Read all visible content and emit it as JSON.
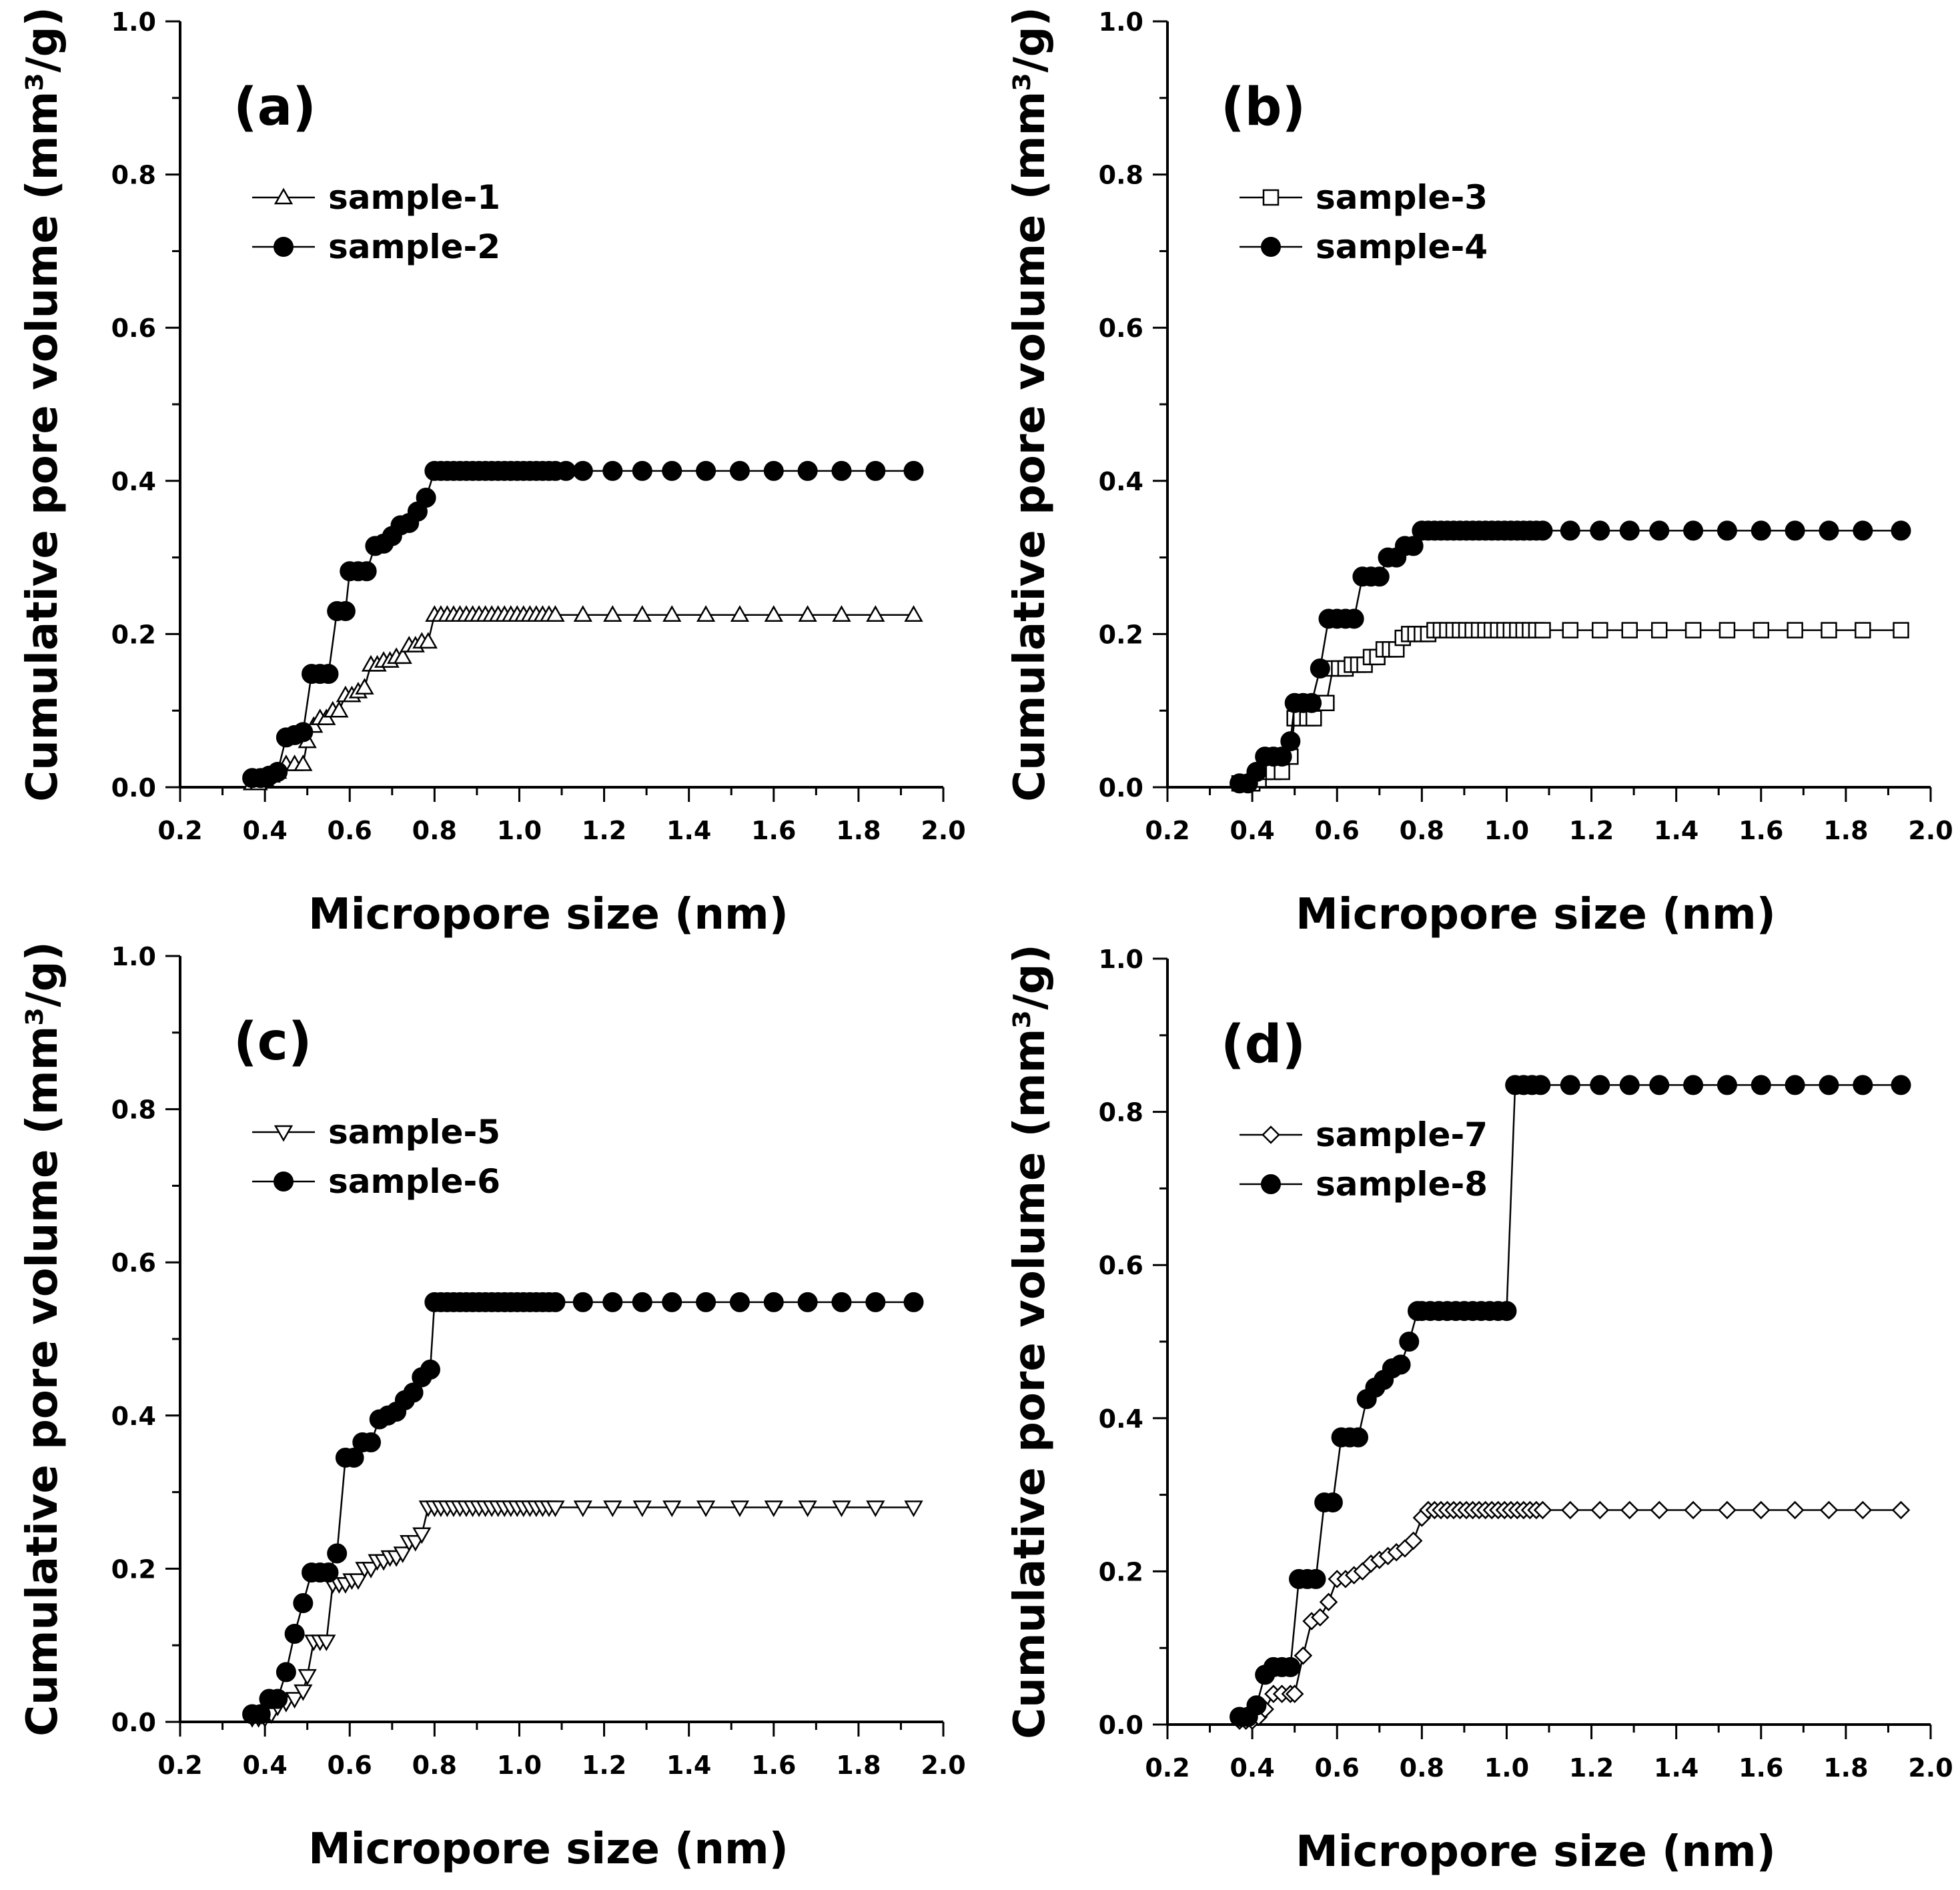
{
  "figure": {
    "shared_xlabel": "Micropore size (nm)",
    "shared_ylabel": "Cumulative pore volume (mm³/g)",
    "xticks": [
      "0.2",
      "0.4",
      "0.6",
      "0.8",
      "1.0",
      "1.2",
      "1.4",
      "1.6",
      "1.8",
      "2.0"
    ],
    "yticks": [
      "0.0",
      "0.2",
      "0.4",
      "0.6",
      "0.8",
      "1.0"
    ]
  },
  "colors": {
    "ink": "#000000",
    "background": "#ffffff"
  },
  "chart_data": [
    {
      "type": "line",
      "panel_label": "(a)",
      "xlabel": "Micropore size (nm)",
      "ylabel": "Cumulative pore volume (mm³/g)",
      "xlim": [
        0.2,
        2.0
      ],
      "ylim": [
        0.0,
        1.0
      ],
      "legend_position": "top-left",
      "series": [
        {
          "name": "sample-1",
          "marker": "triangle-up",
          "fill": "open",
          "x": [
            0.37,
            0.385,
            0.4,
            0.415,
            0.43,
            0.45,
            0.47,
            0.49,
            0.5,
            0.515,
            0.53,
            0.545,
            0.56,
            0.575,
            0.59,
            0.605,
            0.62,
            0.635,
            0.65,
            0.665,
            0.68,
            0.695,
            0.71,
            0.725,
            0.74,
            0.755,
            0.77,
            0.785,
            0.8,
            0.815,
            0.83,
            0.845,
            0.86,
            0.875,
            0.89,
            0.905,
            0.92,
            0.935,
            0.95,
            0.965,
            0.98,
            0.995,
            1.01,
            1.025,
            1.04,
            1.055,
            1.07,
            1.085,
            1.15,
            1.22,
            1.29,
            1.36,
            1.44,
            1.52,
            1.6,
            1.68,
            1.76,
            1.84,
            1.93
          ],
          "y": [
            0.005,
            0.005,
            0.01,
            0.015,
            0.02,
            0.03,
            0.03,
            0.03,
            0.06,
            0.08,
            0.09,
            0.09,
            0.1,
            0.1,
            0.12,
            0.12,
            0.125,
            0.13,
            0.16,
            0.16,
            0.165,
            0.165,
            0.17,
            0.17,
            0.185,
            0.185,
            0.19,
            0.19,
            0.225,
            0.225,
            0.225,
            0.225,
            0.225,
            0.225,
            0.225,
            0.225,
            0.225,
            0.225,
            0.225,
            0.225,
            0.225,
            0.225,
            0.225,
            0.225,
            0.225,
            0.225,
            0.225,
            0.225,
            0.225,
            0.225,
            0.225,
            0.225,
            0.225,
            0.225,
            0.225,
            0.225,
            0.225,
            0.225,
            0.225
          ]
        },
        {
          "name": "sample-2",
          "marker": "circle",
          "fill": "filled",
          "x": [
            0.37,
            0.39,
            0.41,
            0.43,
            0.45,
            0.47,
            0.49,
            0.51,
            0.53,
            0.55,
            0.57,
            0.59,
            0.6,
            0.62,
            0.64,
            0.66,
            0.68,
            0.7,
            0.72,
            0.74,
            0.76,
            0.78,
            0.8,
            0.815,
            0.83,
            0.845,
            0.86,
            0.875,
            0.89,
            0.905,
            0.92,
            0.935,
            0.95,
            0.965,
            0.98,
            0.995,
            1.01,
            1.025,
            1.04,
            1.055,
            1.07,
            1.085,
            1.11,
            1.15,
            1.22,
            1.29,
            1.36,
            1.44,
            1.52,
            1.6,
            1.68,
            1.76,
            1.84,
            1.93
          ],
          "y": [
            0.012,
            0.012,
            0.015,
            0.02,
            0.065,
            0.068,
            0.072,
            0.148,
            0.148,
            0.148,
            0.23,
            0.23,
            0.282,
            0.282,
            0.282,
            0.315,
            0.318,
            0.328,
            0.342,
            0.345,
            0.36,
            0.378,
            0.413,
            0.413,
            0.413,
            0.413,
            0.413,
            0.413,
            0.413,
            0.413,
            0.413,
            0.413,
            0.413,
            0.413,
            0.413,
            0.413,
            0.413,
            0.413,
            0.413,
            0.413,
            0.413,
            0.413,
            0.413,
            0.413,
            0.413,
            0.413,
            0.413,
            0.413,
            0.413,
            0.413,
            0.413,
            0.413,
            0.413,
            0.413
          ]
        }
      ]
    },
    {
      "type": "line",
      "panel_label": "(b)",
      "xlabel": "Micropore size (nm)",
      "ylabel": "Cumulative pore volume (mm³/g)",
      "xlim": [
        0.2,
        2.0
      ],
      "ylim": [
        0.0,
        1.0
      ],
      "legend_position": "top-left",
      "series": [
        {
          "name": "sample-3",
          "marker": "square",
          "fill": "open",
          "x": [
            0.37,
            0.385,
            0.4,
            0.415,
            0.43,
            0.45,
            0.47,
            0.49,
            0.5,
            0.515,
            0.53,
            0.545,
            0.56,
            0.575,
            0.59,
            0.605,
            0.62,
            0.635,
            0.65,
            0.665,
            0.68,
            0.695,
            0.71,
            0.725,
            0.74,
            0.755,
            0.77,
            0.785,
            0.8,
            0.815,
            0.83,
            0.845,
            0.86,
            0.875,
            0.89,
            0.905,
            0.92,
            0.935,
            0.95,
            0.965,
            0.98,
            0.995,
            1.01,
            1.025,
            1.04,
            1.055,
            1.07,
            1.085,
            1.15,
            1.22,
            1.29,
            1.36,
            1.44,
            1.52,
            1.6,
            1.68,
            1.76,
            1.84,
            1.93
          ],
          "y": [
            0.005,
            0.005,
            0.005,
            0.01,
            0.02,
            0.02,
            0.02,
            0.04,
            0.09,
            0.09,
            0.09,
            0.09,
            0.11,
            0.11,
            0.155,
            0.155,
            0.155,
            0.16,
            0.16,
            0.16,
            0.17,
            0.17,
            0.18,
            0.18,
            0.18,
            0.195,
            0.2,
            0.2,
            0.2,
            0.2,
            0.205,
            0.205,
            0.205,
            0.205,
            0.205,
            0.205,
            0.205,
            0.205,
            0.205,
            0.205,
            0.205,
            0.205,
            0.205,
            0.205,
            0.205,
            0.205,
            0.205,
            0.205,
            0.205,
            0.205,
            0.205,
            0.205,
            0.205,
            0.205,
            0.205,
            0.205,
            0.205,
            0.205,
            0.205
          ]
        },
        {
          "name": "sample-4",
          "marker": "circle",
          "fill": "filled",
          "x": [
            0.37,
            0.39,
            0.41,
            0.43,
            0.45,
            0.47,
            0.49,
            0.5,
            0.52,
            0.54,
            0.56,
            0.58,
            0.6,
            0.62,
            0.64,
            0.66,
            0.68,
            0.7,
            0.72,
            0.74,
            0.76,
            0.78,
            0.8,
            0.815,
            0.83,
            0.845,
            0.86,
            0.875,
            0.89,
            0.905,
            0.92,
            0.935,
            0.95,
            0.965,
            0.98,
            0.995,
            1.01,
            1.025,
            1.04,
            1.055,
            1.07,
            1.085,
            1.15,
            1.22,
            1.29,
            1.36,
            1.44,
            1.52,
            1.6,
            1.68,
            1.76,
            1.84,
            1.93
          ],
          "y": [
            0.005,
            0.005,
            0.02,
            0.04,
            0.04,
            0.04,
            0.06,
            0.11,
            0.11,
            0.11,
            0.155,
            0.22,
            0.22,
            0.22,
            0.22,
            0.275,
            0.275,
            0.275,
            0.3,
            0.3,
            0.315,
            0.315,
            0.335,
            0.335,
            0.335,
            0.335,
            0.335,
            0.335,
            0.335,
            0.335,
            0.335,
            0.335,
            0.335,
            0.335,
            0.335,
            0.335,
            0.335,
            0.335,
            0.335,
            0.335,
            0.335,
            0.335,
            0.335,
            0.335,
            0.335,
            0.335,
            0.335,
            0.335,
            0.335,
            0.335,
            0.335,
            0.335,
            0.335
          ]
        }
      ]
    },
    {
      "type": "line",
      "panel_label": "(c)",
      "xlabel": "Micropore size (nm)",
      "ylabel": "Cumulative pore volume (mm³/g)",
      "xlim": [
        0.2,
        2.0
      ],
      "ylim": [
        0.0,
        1.0
      ],
      "legend_position": "top-left",
      "series": [
        {
          "name": "sample-5",
          "marker": "triangle-down",
          "fill": "open",
          "x": [
            0.37,
            0.385,
            0.4,
            0.415,
            0.43,
            0.45,
            0.47,
            0.49,
            0.5,
            0.515,
            0.53,
            0.545,
            0.56,
            0.575,
            0.59,
            0.605,
            0.62,
            0.635,
            0.65,
            0.665,
            0.68,
            0.695,
            0.71,
            0.725,
            0.74,
            0.755,
            0.77,
            0.785,
            0.8,
            0.815,
            0.83,
            0.845,
            0.86,
            0.875,
            0.89,
            0.905,
            0.92,
            0.935,
            0.95,
            0.965,
            0.98,
            0.995,
            1.01,
            1.025,
            1.04,
            1.055,
            1.07,
            1.085,
            1.15,
            1.22,
            1.29,
            1.36,
            1.44,
            1.52,
            1.6,
            1.68,
            1.76,
            1.84,
            1.93
          ],
          "y": [
            0.005,
            0.005,
            0.005,
            0.01,
            0.02,
            0.025,
            0.03,
            0.04,
            0.06,
            0.105,
            0.105,
            0.105,
            0.18,
            0.18,
            0.18,
            0.185,
            0.185,
            0.2,
            0.2,
            0.21,
            0.21,
            0.215,
            0.215,
            0.22,
            0.235,
            0.235,
            0.245,
            0.28,
            0.28,
            0.28,
            0.28,
            0.28,
            0.28,
            0.28,
            0.28,
            0.28,
            0.28,
            0.28,
            0.28,
            0.28,
            0.28,
            0.28,
            0.28,
            0.28,
            0.28,
            0.28,
            0.28,
            0.28,
            0.28,
            0.28,
            0.28,
            0.28,
            0.28,
            0.28,
            0.28,
            0.28,
            0.28,
            0.28,
            0.28
          ]
        },
        {
          "name": "sample-6",
          "marker": "circle",
          "fill": "filled",
          "x": [
            0.37,
            0.39,
            0.41,
            0.43,
            0.45,
            0.47,
            0.49,
            0.51,
            0.53,
            0.55,
            0.57,
            0.59,
            0.61,
            0.63,
            0.65,
            0.67,
            0.69,
            0.71,
            0.73,
            0.75,
            0.77,
            0.79,
            0.8,
            0.815,
            0.83,
            0.845,
            0.86,
            0.875,
            0.89,
            0.905,
            0.92,
            0.935,
            0.95,
            0.965,
            0.98,
            0.995,
            1.01,
            1.025,
            1.04,
            1.055,
            1.07,
            1.085,
            1.15,
            1.22,
            1.29,
            1.36,
            1.44,
            1.52,
            1.6,
            1.68,
            1.76,
            1.84,
            1.93
          ],
          "y": [
            0.01,
            0.01,
            0.03,
            0.03,
            0.065,
            0.115,
            0.155,
            0.195,
            0.195,
            0.195,
            0.22,
            0.345,
            0.345,
            0.365,
            0.365,
            0.395,
            0.4,
            0.405,
            0.42,
            0.43,
            0.45,
            0.46,
            0.548,
            0.548,
            0.548,
            0.548,
            0.548,
            0.548,
            0.548,
            0.548,
            0.548,
            0.548,
            0.548,
            0.548,
            0.548,
            0.548,
            0.548,
            0.548,
            0.548,
            0.548,
            0.548,
            0.548,
            0.548,
            0.548,
            0.548,
            0.548,
            0.548,
            0.548,
            0.548,
            0.548,
            0.548,
            0.548,
            0.548
          ]
        }
      ]
    },
    {
      "type": "line",
      "panel_label": "(d)",
      "xlabel": "Micropore size (nm)",
      "ylabel": "Cumulative pore volume (mm³/g)",
      "xlim": [
        0.2,
        2.0
      ],
      "ylim": [
        0.0,
        1.0
      ],
      "legend_position": "top-left",
      "series": [
        {
          "name": "sample-7",
          "marker": "diamond",
          "fill": "open",
          "x": [
            0.37,
            0.385,
            0.4,
            0.415,
            0.43,
            0.45,
            0.47,
            0.49,
            0.5,
            0.52,
            0.54,
            0.56,
            0.58,
            0.6,
            0.62,
            0.64,
            0.66,
            0.68,
            0.7,
            0.72,
            0.74,
            0.76,
            0.78,
            0.8,
            0.815,
            0.83,
            0.845,
            0.86,
            0.875,
            0.89,
            0.905,
            0.92,
            0.935,
            0.95,
            0.965,
            0.98,
            0.995,
            1.01,
            1.025,
            1.04,
            1.055,
            1.07,
            1.085,
            1.15,
            1.22,
            1.29,
            1.36,
            1.44,
            1.52,
            1.6,
            1.68,
            1.76,
            1.84,
            1.93
          ],
          "y": [
            0.005,
            0.005,
            0.005,
            0.01,
            0.02,
            0.04,
            0.04,
            0.04,
            0.04,
            0.09,
            0.135,
            0.14,
            0.16,
            0.19,
            0.19,
            0.195,
            0.2,
            0.21,
            0.215,
            0.22,
            0.225,
            0.23,
            0.24,
            0.27,
            0.28,
            0.28,
            0.28,
            0.28,
            0.28,
            0.28,
            0.28,
            0.28,
            0.28,
            0.28,
            0.28,
            0.28,
            0.28,
            0.28,
            0.28,
            0.28,
            0.28,
            0.28,
            0.28,
            0.28,
            0.28,
            0.28,
            0.28,
            0.28,
            0.28,
            0.28,
            0.28,
            0.28,
            0.28,
            0.28
          ]
        },
        {
          "name": "sample-8",
          "marker": "circle",
          "fill": "filled",
          "x": [
            0.37,
            0.39,
            0.41,
            0.43,
            0.45,
            0.47,
            0.49,
            0.51,
            0.53,
            0.55,
            0.57,
            0.59,
            0.61,
            0.63,
            0.65,
            0.67,
            0.69,
            0.71,
            0.73,
            0.75,
            0.77,
            0.79,
            0.8,
            0.82,
            0.84,
            0.86,
            0.88,
            0.9,
            0.92,
            0.94,
            0.96,
            0.98,
            1.0,
            1.02,
            1.04,
            1.06,
            1.08,
            1.15,
            1.22,
            1.29,
            1.36,
            1.44,
            1.52,
            1.6,
            1.68,
            1.76,
            1.84,
            1.93
          ],
          "y": [
            0.01,
            0.01,
            0.025,
            0.065,
            0.075,
            0.075,
            0.075,
            0.19,
            0.19,
            0.19,
            0.29,
            0.29,
            0.375,
            0.375,
            0.375,
            0.425,
            0.44,
            0.45,
            0.465,
            0.47,
            0.5,
            0.54,
            0.54,
            0.54,
            0.54,
            0.54,
            0.54,
            0.54,
            0.54,
            0.54,
            0.54,
            0.54,
            0.54,
            0.835,
            0.835,
            0.835,
            0.835,
            0.835,
            0.835,
            0.835,
            0.835,
            0.835,
            0.835,
            0.835,
            0.835,
            0.835,
            0.835,
            0.835
          ]
        }
      ]
    }
  ]
}
